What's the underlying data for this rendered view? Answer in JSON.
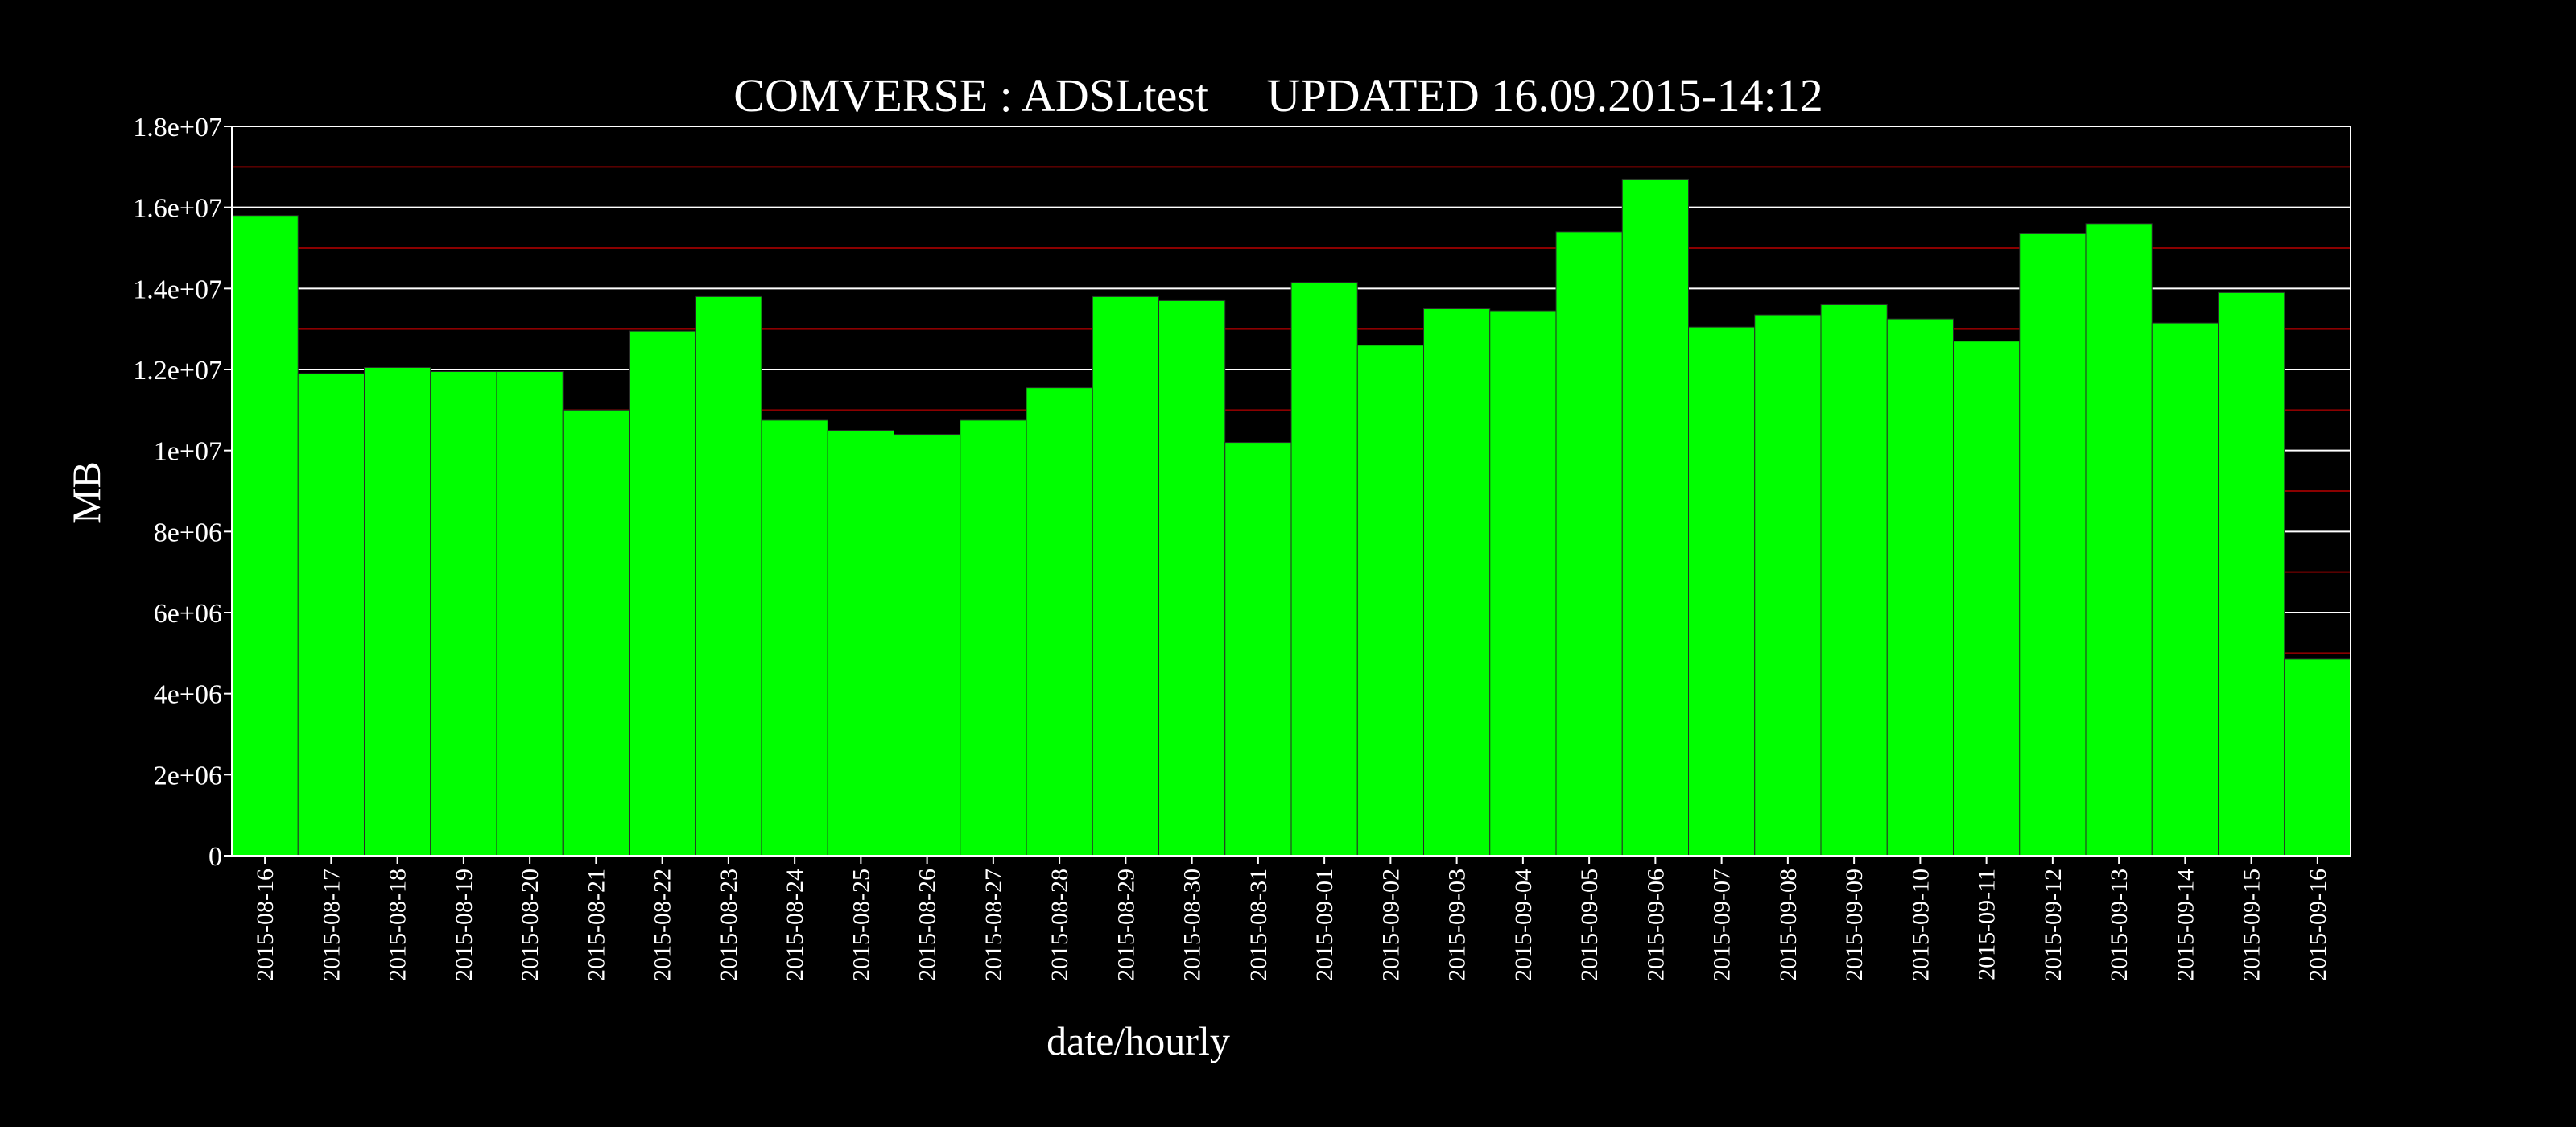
{
  "chart_data": {
    "type": "bar",
    "title": "COMVERSE : ADSLtest     UPDATED 16.09.2015-14:12",
    "xlabel": "date/hourly",
    "ylabel": "MB",
    "ylim": [
      0,
      18000000
    ],
    "yticks": [
      0,
      2000000,
      4000000,
      6000000,
      8000000,
      10000000,
      12000000,
      14000000,
      16000000,
      18000000
    ],
    "ytick_labels": [
      "0",
      "2e+06",
      "4e+06",
      "6e+06",
      "8e+06",
      "1e+07",
      "1.2e+07",
      "1.4e+07",
      "1.6e+07",
      "1.8e+07"
    ],
    "grid": true,
    "legend": "none",
    "bar_color": "#00ff00",
    "background_color": "#000000",
    "major_grid_color": "#ffffff",
    "minor_grid_color": "#8b0000",
    "categories": [
      "2015-08-16",
      "2015-08-17",
      "2015-08-18",
      "2015-08-19",
      "2015-08-20",
      "2015-08-21",
      "2015-08-22",
      "2015-08-23",
      "2015-08-24",
      "2015-08-25",
      "2015-08-26",
      "2015-08-27",
      "2015-08-28",
      "2015-08-29",
      "2015-08-30",
      "2015-08-31",
      "2015-09-01",
      "2015-09-02",
      "2015-09-03",
      "2015-09-04",
      "2015-09-05",
      "2015-09-06",
      "2015-09-07",
      "2015-09-08",
      "2015-09-09",
      "2015-09-10",
      "2015-09-11",
      "2015-09-12",
      "2015-09-13",
      "2015-09-14",
      "2015-09-15",
      "2015-09-16"
    ],
    "values": [
      15800000,
      11900000,
      12050000,
      11950000,
      11950000,
      11000000,
      12950000,
      13800000,
      10750000,
      10500000,
      10400000,
      10750000,
      11550000,
      13800000,
      13700000,
      10200000,
      14150000,
      12600000,
      13500000,
      13450000,
      15400000,
      16700000,
      13050000,
      13350000,
      13600000,
      13250000,
      12700000,
      15350000,
      15600000,
      13150000,
      13900000,
      4850000
    ]
  }
}
